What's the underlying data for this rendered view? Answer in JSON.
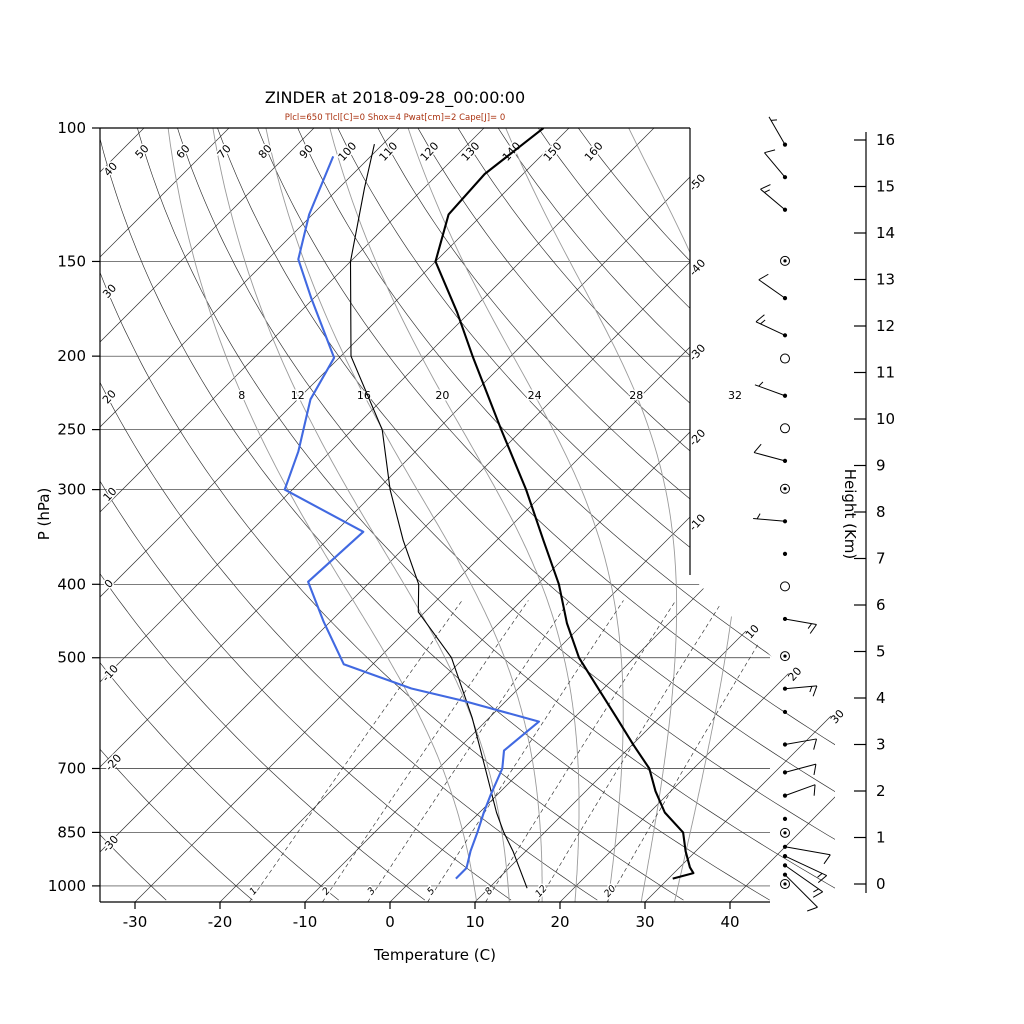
{
  "title": "ZINDER at 2018-09-28_00:00:00",
  "subtitle": "Plcl=650 Tlcl[C]=0 Shox=4 Pwat[cm]=2 Cape[J]= 0",
  "axis_labels": {
    "pressure": "P (hPa)",
    "temperature": "Temperature (C)",
    "height": "Height (Km)"
  },
  "colors": {
    "temperature_line": "#000000",
    "parcel_line": "#000000",
    "dewpoint_line": "#4169e1",
    "subtitle": "#aa3311",
    "grid": "#2e2e2e",
    "moist_adiabat": "#9a9a9a"
  },
  "chart_data": {
    "type": "skewt-logp",
    "station": "ZINDER",
    "datetime": "2018-09-28_00:00:00",
    "indices": {
      "Plcl": 650,
      "Tlcl_C": 0,
      "Shox": 4,
      "Pwat_cm": 2,
      "Cape_J": 0
    },
    "pressure_ticks": [
      100,
      150,
      200,
      250,
      300,
      400,
      500,
      700,
      850,
      1000
    ],
    "temperature_ticks": [
      -30,
      -20,
      -10,
      0,
      10,
      20,
      30,
      40
    ],
    "height_ticks_km": [
      0,
      1,
      2,
      3,
      4,
      5,
      6,
      7,
      8,
      9,
      10,
      11,
      12,
      13,
      14,
      15,
      16
    ],
    "isotherms": {
      "min": -120,
      "max": 40,
      "step": 10
    },
    "dry_adiabats": {
      "min": -30,
      "max": 160,
      "step": 10
    },
    "moist_adiabats": [
      8,
      12,
      16,
      20,
      24,
      28,
      32
    ],
    "mixing_ratio_lines": [
      1,
      2,
      3,
      5,
      8,
      12,
      20
    ],
    "temperature_profile": [
      [
        978,
        30.5
      ],
      [
        962,
        32.3
      ],
      [
        945,
        31.2
      ],
      [
        900,
        28.8
      ],
      [
        850,
        26.3
      ],
      [
        800,
        21.8
      ],
      [
        750,
        18.2
      ],
      [
        700,
        14.8
      ],
      [
        650,
        10.0
      ],
      [
        600,
        5.0
      ],
      [
        550,
        -0.5
      ],
      [
        500,
        -6.5
      ],
      [
        450,
        -12.0
      ],
      [
        400,
        -17.5
      ],
      [
        350,
        -24.5
      ],
      [
        300,
        -32.5
      ],
      [
        250,
        -42.5
      ],
      [
        200,
        -54.5
      ],
      [
        175,
        -61.5
      ],
      [
        150,
        -70.0
      ],
      [
        130,
        -74.0
      ],
      [
        115,
        -74.5
      ],
      [
        100,
        -73.0
      ]
    ],
    "dewpoint_profile": [
      [
        978,
        5.0
      ],
      [
        947,
        5.0
      ],
      [
        900,
        3.5
      ],
      [
        850,
        2.1
      ],
      [
        800,
        0.5
      ],
      [
        757,
        -0.8
      ],
      [
        700,
        -2.5
      ],
      [
        663,
        -4.4
      ],
      [
        630,
        -4.0
      ],
      [
        607,
        -3.7
      ],
      [
        570,
        -15.0
      ],
      [
        549,
        -22.6
      ],
      [
        510,
        -33.4
      ],
      [
        448,
        -40.8
      ],
      [
        397,
        -47.3
      ],
      [
        341,
        -46.7
      ],
      [
        300,
        -60.9
      ],
      [
        267,
        -63.8
      ],
      [
        228,
        -68.5
      ],
      [
        201,
        -70.6
      ],
      [
        168,
        -80.2
      ],
      [
        149,
        -86.4
      ],
      [
        130,
        -90.4
      ],
      [
        109,
        -94.4
      ]
    ],
    "parcel_profile": [
      [
        1007,
        14.5
      ],
      [
        900,
        8.5
      ],
      [
        850,
        5.2
      ],
      [
        800,
        2.0
      ],
      [
        700,
        -4.5
      ],
      [
        600,
        -12.0
      ],
      [
        500,
        -21.5
      ],
      [
        435,
        -30.8
      ],
      [
        400,
        -34.0
      ],
      [
        350,
        -41.0
      ],
      [
        300,
        -48.5
      ],
      [
        250,
        -56.5
      ],
      [
        200,
        -68.8
      ],
      [
        150,
        -80.0
      ],
      [
        120,
        -87.0
      ],
      [
        105,
        -91.0
      ]
    ],
    "wind_profile": [
      {
        "km": 15.9,
        "type": "barb",
        "speed_kt": 5,
        "dir_deg": 330
      },
      {
        "km": 15.2,
        "type": "barb",
        "speed_kt": 10,
        "dir_deg": 320
      },
      {
        "km": 14.5,
        "type": "barb",
        "speed_kt": 15,
        "dir_deg": 310
      },
      {
        "km": 13.4,
        "type": "circle-dot",
        "speed_kt": 0,
        "dir_deg": 0
      },
      {
        "km": 12.6,
        "type": "barb",
        "speed_kt": 10,
        "dir_deg": 305
      },
      {
        "km": 11.8,
        "type": "barb",
        "speed_kt": 15,
        "dir_deg": 295
      },
      {
        "km": 11.3,
        "type": "circle",
        "speed_kt": 0,
        "dir_deg": 0
      },
      {
        "km": 10.5,
        "type": "barb",
        "speed_kt": 5,
        "dir_deg": 290
      },
      {
        "km": 9.8,
        "type": "circle",
        "speed_kt": 0,
        "dir_deg": 0
      },
      {
        "km": 9.1,
        "type": "barb",
        "speed_kt": 10,
        "dir_deg": 285
      },
      {
        "km": 8.5,
        "type": "circle-dot",
        "speed_kt": 0,
        "dir_deg": 0
      },
      {
        "km": 7.8,
        "type": "barb",
        "speed_kt": 5,
        "dir_deg": 275
      },
      {
        "km": 7.1,
        "type": "dot",
        "speed_kt": 0,
        "dir_deg": 0
      },
      {
        "km": 6.4,
        "type": "circle",
        "speed_kt": 0,
        "dir_deg": 0
      },
      {
        "km": 5.7,
        "type": "barb",
        "speed_kt": 15,
        "dir_deg": 100
      },
      {
        "km": 4.9,
        "type": "circle-dot",
        "speed_kt": 0,
        "dir_deg": 0
      },
      {
        "km": 4.2,
        "type": "barb",
        "speed_kt": 15,
        "dir_deg": 85
      },
      {
        "km": 3.7,
        "type": "dot",
        "speed_kt": 0,
        "dir_deg": 0
      },
      {
        "km": 3.0,
        "type": "barb",
        "speed_kt": 10,
        "dir_deg": 80
      },
      {
        "km": 2.4,
        "type": "barb",
        "speed_kt": 10,
        "dir_deg": 75
      },
      {
        "km": 1.9,
        "type": "barb",
        "speed_kt": 10,
        "dir_deg": 70
      },
      {
        "km": 1.4,
        "type": "dot",
        "speed_kt": 0,
        "dir_deg": 0
      },
      {
        "km": 1.1,
        "type": "circle-dot",
        "speed_kt": 0,
        "dir_deg": 0
      },
      {
        "km": 0.8,
        "type": "barb",
        "speed_kt": 10,
        "dir_deg": 100
      },
      {
        "km": 0.6,
        "type": "barb",
        "speed_kt": 15,
        "dir_deg": 115
      },
      {
        "km": 0.4,
        "type": "barb",
        "speed_kt": 15,
        "dir_deg": 125
      },
      {
        "km": 0.2,
        "type": "barb",
        "speed_kt": 10,
        "dir_deg": 135
      },
      {
        "km": 0.0,
        "type": "circle-dot",
        "speed_kt": 0,
        "dir_deg": 0
      }
    ]
  }
}
